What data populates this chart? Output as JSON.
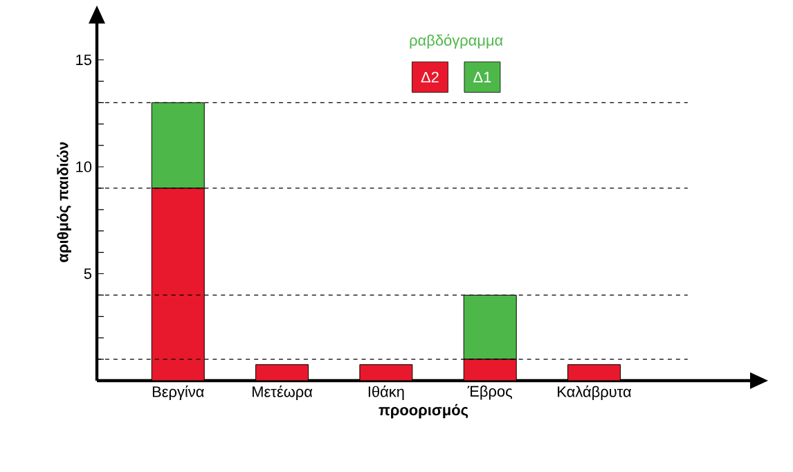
{
  "chart_data": {
    "type": "bar",
    "stacked": true,
    "xlabel": "προορισμός",
    "ylabel": "αριθμός παιδιών",
    "legend_title": "ραβδόγραμμα",
    "legend": "top",
    "categories": [
      "Βεργίνα",
      "Μετέωρα",
      "Ιθάκη",
      "Έβρος",
      "Καλάβρυτα"
    ],
    "series": [
      {
        "name": "Δ2",
        "color": "#e8192c",
        "values": [
          9,
          0.75,
          0.75,
          1,
          0.75
        ]
      },
      {
        "name": "Δ1",
        "color": "#4db749",
        "values": [
          4,
          0,
          0,
          3,
          0
        ]
      }
    ],
    "ylim": [
      0,
      16.7
    ],
    "yticks": [
      {
        "value": 1,
        "label": null
      },
      {
        "value": 2,
        "label": null
      },
      {
        "value": 3,
        "label": null
      },
      {
        "value": 4,
        "label": null
      },
      5,
      {
        "value": 6,
        "label": null
      },
      {
        "value": 7,
        "label": null
      },
      {
        "value": 8,
        "label": null
      },
      {
        "value": 9,
        "label": null
      },
      10,
      {
        "value": 11,
        "label": null
      },
      {
        "value": 12,
        "label": null
      },
      {
        "value": 13,
        "label": null
      },
      {
        "value": 14,
        "label": null
      },
      15
    ],
    "ref_lines": [
      {
        "axis": "y",
        "value": 13,
        "line_style": "dashed"
      },
      {
        "axis": "y",
        "value": 9,
        "line_style": "dashed"
      },
      {
        "axis": "y",
        "value": 4,
        "line_style": "dashed"
      },
      {
        "axis": "y",
        "value": 1,
        "line_style": "dashed"
      }
    ]
  }
}
